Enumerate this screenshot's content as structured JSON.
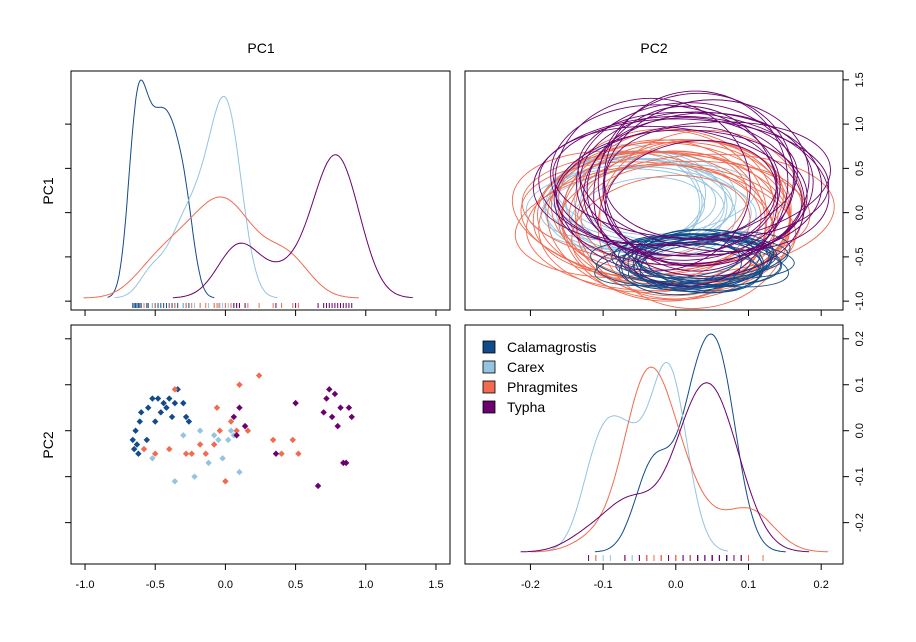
{
  "colors": {
    "Calamagrostis": "#114b89",
    "Carex": "#94c4df",
    "Phragmites": "#f26a4f",
    "Typha": "#6a016e"
  },
  "chart_data": {
    "type": "scatter-matrix",
    "col_titles": [
      "PC1",
      "PC2"
    ],
    "row_titles": [
      "PC1",
      "PC2"
    ],
    "pc1_axis": {
      "range": [
        -1.1,
        1.6
      ],
      "ticks": [
        "-1.0",
        "-0.5",
        "0.0",
        "0.5",
        "1.0",
        "1.5"
      ]
    },
    "pc2_axis": {
      "range": [
        -0.29,
        0.23
      ],
      "ticks": [
        "-0.2",
        "-0.1",
        "0.0",
        "0.1",
        "0.2"
      ]
    },
    "pc2_axis_bottom": {
      "range": [
        -0.26,
        0.23
      ],
      "ticks": [
        "-0.2",
        "-0.1",
        "0.0",
        "0.1",
        "0.2"
      ]
    },
    "pc2_axis_topright_y": {
      "range": [
        -1.1,
        1.6
      ],
      "ticks": [
        "-1.0",
        "-0.5",
        "0.0",
        "0.5",
        "1.0",
        "1.5"
      ]
    },
    "legend": {
      "placement": "top-left",
      "entries": [
        "Calamagrostis",
        "Carex",
        "Phragmites",
        "Typha"
      ]
    },
    "series": [
      {
        "name": "Calamagrostis",
        "points": [
          [
            -0.66,
            -0.02
          ],
          [
            -0.65,
            -0.04
          ],
          [
            -0.64,
            0.0
          ],
          [
            -0.63,
            -0.03
          ],
          [
            -0.62,
            -0.05
          ],
          [
            -0.61,
            0.02
          ],
          [
            -0.6,
            0.04
          ],
          [
            -0.56,
            -0.02
          ],
          [
            -0.55,
            0.05
          ],
          [
            -0.52,
            0.07
          ],
          [
            -0.5,
            0.02
          ],
          [
            -0.48,
            0.07
          ],
          [
            -0.46,
            0.04
          ],
          [
            -0.44,
            0.06
          ],
          [
            -0.42,
            0.05
          ],
          [
            -0.4,
            0.07
          ],
          [
            -0.38,
            0.03
          ],
          [
            -0.36,
            0.06
          ],
          [
            -0.34,
            0.09
          ],
          [
            -0.3,
            0.06
          ],
          [
            -0.28,
            0.03
          ],
          [
            -0.26,
            0.02
          ]
        ]
      },
      {
        "name": "Carex",
        "points": [
          [
            -0.52,
            -0.06
          ],
          [
            -0.36,
            -0.11
          ],
          [
            -0.3,
            -0.01
          ],
          [
            -0.22,
            -0.1
          ],
          [
            -0.18,
            0.0
          ],
          [
            -0.12,
            -0.07
          ],
          [
            -0.08,
            -0.01
          ],
          [
            -0.05,
            -0.02
          ],
          [
            -0.02,
            -0.06
          ],
          [
            0.0,
            -0.11
          ],
          [
            0.02,
            -0.02
          ],
          [
            0.04,
            0.0
          ],
          [
            0.06,
            -0.01
          ],
          [
            0.1,
            -0.09
          ]
        ]
      },
      {
        "name": "Phragmites",
        "points": [
          [
            -0.58,
            -0.04
          ],
          [
            -0.5,
            -0.05
          ],
          [
            -0.4,
            -0.04
          ],
          [
            -0.36,
            0.09
          ],
          [
            -0.28,
            -0.05
          ],
          [
            -0.24,
            -0.05
          ],
          [
            -0.18,
            -0.03
          ],
          [
            -0.14,
            -0.05
          ],
          [
            -0.08,
            -0.03
          ],
          [
            -0.06,
            0.05
          ],
          [
            -0.04,
            0.0
          ],
          [
            0.0,
            -0.11
          ],
          [
            0.04,
            0.02
          ],
          [
            0.08,
            0.0
          ],
          [
            0.1,
            0.1
          ],
          [
            0.16,
            0.0
          ],
          [
            0.24,
            0.12
          ],
          [
            0.34,
            -0.02
          ],
          [
            0.4,
            -0.05
          ],
          [
            0.48,
            -0.02
          ],
          [
            0.52,
            -0.05
          ]
        ]
      },
      {
        "name": "Typha",
        "points": [
          [
            0.06,
            0.03
          ],
          [
            0.08,
            -0.01
          ],
          [
            0.1,
            0.05
          ],
          [
            0.14,
            0.01
          ],
          [
            0.36,
            -0.05
          ],
          [
            0.5,
            0.06
          ],
          [
            0.66,
            -0.12
          ],
          [
            0.7,
            0.04
          ],
          [
            0.72,
            0.07
          ],
          [
            0.74,
            0.09
          ],
          [
            0.76,
            0.03
          ],
          [
            0.78,
            0.08
          ],
          [
            0.8,
            0.01
          ],
          [
            0.82,
            0.05
          ],
          [
            0.84,
            -0.07
          ],
          [
            0.86,
            -0.07
          ],
          [
            0.88,
            0.05
          ],
          [
            0.9,
            0.03
          ]
        ]
      }
    ]
  }
}
